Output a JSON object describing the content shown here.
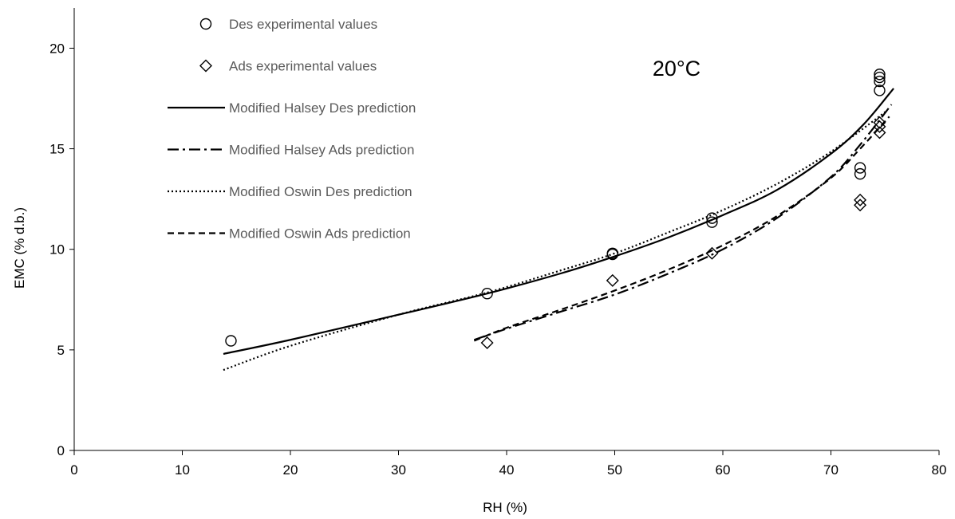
{
  "chart_data": {
    "type": "scatter",
    "xlabel": "RH (%)",
    "ylabel": "EMC (% d.b.)",
    "xlim": [
      0,
      80
    ],
    "ylim": [
      0,
      22
    ],
    "x_ticks": [
      0,
      10,
      20,
      30,
      40,
      50,
      60,
      70,
      80
    ],
    "y_ticks": [
      0,
      5,
      10,
      15,
      20
    ],
    "grid": false,
    "legend_position": "top-left",
    "annotation": "20°C",
    "series": [
      {
        "name": "Des experimental values",
        "kind": "points",
        "marker": "circle",
        "x": [
          14.5,
          38.2,
          49.8,
          49.8,
          59.0,
          59.0,
          72.7,
          72.7,
          74.5,
          74.5,
          74.5,
          74.5
        ],
        "y": [
          5.45,
          7.8,
          9.75,
          9.8,
          11.35,
          11.55,
          13.75,
          14.05,
          17.9,
          18.35,
          18.55,
          18.7
        ]
      },
      {
        "name": "Ads experimental values",
        "kind": "points",
        "marker": "diamond",
        "x": [
          38.2,
          49.8,
          59.0,
          72.7,
          72.7,
          74.5,
          74.5,
          74.5
        ],
        "y": [
          5.35,
          8.45,
          9.8,
          12.2,
          12.45,
          15.8,
          16.1,
          16.3
        ]
      },
      {
        "name": "Modified Halsey Des prediction",
        "kind": "line",
        "dash": "solid",
        "x": [
          13.8,
          20,
          30,
          38.2,
          45,
          50,
          55,
          60,
          65,
          70,
          73,
          75.8
        ],
        "y": [
          4.8,
          5.5,
          6.75,
          7.8,
          8.8,
          9.65,
          10.6,
          11.7,
          12.95,
          14.75,
          16.2,
          18.0
        ]
      },
      {
        "name": "Modified Halsey Ads prediction",
        "kind": "line",
        "dash": "dashdot",
        "x": [
          37,
          40,
          45,
          50,
          55,
          60,
          65,
          70,
          72.7,
          75.6
        ],
        "y": [
          5.5,
          6.05,
          6.9,
          7.75,
          8.8,
          10.0,
          11.55,
          13.6,
          15.2,
          17.2
        ]
      },
      {
        "name": "Modified Oswin Des prediction",
        "kind": "line",
        "dash": "dotted",
        "x": [
          13.8,
          20,
          30,
          38.2,
          45,
          50,
          55,
          60,
          65,
          70,
          75.2
        ],
        "y": [
          4.0,
          5.2,
          6.75,
          7.85,
          8.95,
          9.8,
          10.85,
          11.95,
          13.25,
          14.85,
          16.9
        ]
      },
      {
        "name": "Modified Oswin Ads prediction",
        "kind": "line",
        "dash": "dashed",
        "x": [
          37,
          40,
          45,
          50,
          55,
          60,
          65,
          70,
          72.7,
          75.4
        ],
        "y": [
          5.45,
          6.1,
          7.0,
          7.95,
          9.0,
          10.2,
          11.65,
          13.55,
          15.0,
          16.6
        ]
      }
    ]
  }
}
